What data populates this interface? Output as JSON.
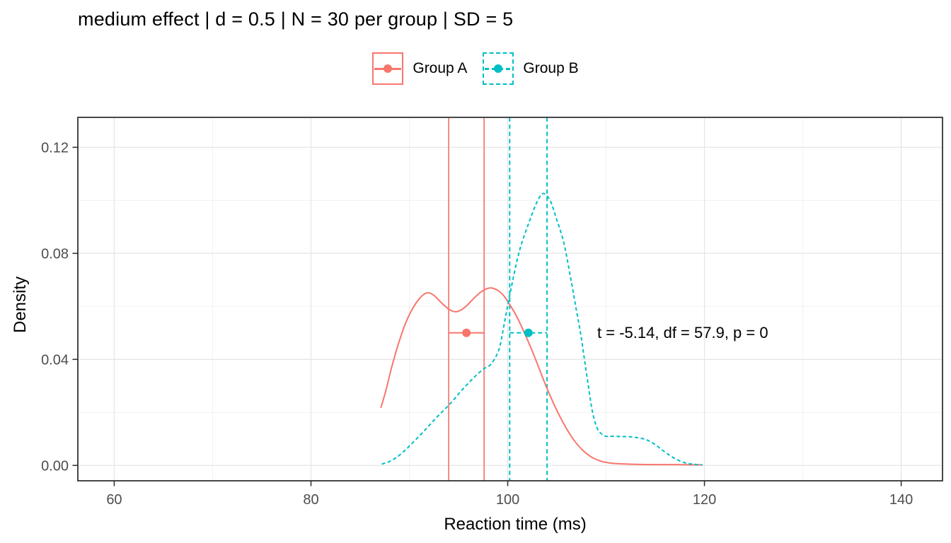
{
  "title": "medium effect | d = 0.5 | N = 30 per group | SD = 5",
  "legend": {
    "items": [
      {
        "label": "Group A",
        "color": "#F8766D",
        "linestyle": "solid"
      },
      {
        "label": "Group B",
        "color": "#00BFC4",
        "linestyle": "dashed"
      }
    ]
  },
  "axes": {
    "xlabel": "Reaction time (ms)",
    "ylabel": "Density"
  },
  "colors": {
    "group_a": "#F8766D",
    "group_b": "#00BFC4",
    "grid_major": "#E6E6E6",
    "grid_minor": "#F1F1F1",
    "panel_border": "#333333",
    "tick_label": "#4D4D4D",
    "text": "#000000",
    "background": "#FFFFFF"
  },
  "chart_data": {
    "type": "line",
    "title": "medium effect | d = 0.5 | N = 30 per group | SD = 5",
    "xlabel": "Reaction time (ms)",
    "ylabel": "Density",
    "xlim": [
      56.3,
      144.2
    ],
    "ylim": [
      -0.0058,
      0.1313
    ],
    "xticks_major": [
      60,
      80,
      100,
      120,
      140
    ],
    "xticks_minor": [
      70,
      90,
      110,
      130
    ],
    "yticks_major": [
      0,
      0.04,
      0.08,
      0.12
    ],
    "yticks_minor": [
      0.02,
      0.06,
      0.1
    ],
    "grid": true,
    "legend_position": "top-center",
    "annotation": {
      "text": "t = -5.14, df = 57.9, p = 0",
      "x": 109.1,
      "y": 0.05
    },
    "series": [
      {
        "name": "Group A",
        "color": "#F8766D",
        "linestyle": "solid",
        "mean": 95.8,
        "ci": [
          94.0,
          97.6
        ],
        "errorbar_y": 0.05,
        "ci_vlines": true,
        "x": [
          87.1,
          87.6,
          88.2,
          88.9,
          89.6,
          90.3,
          91.0,
          91.6,
          92.1,
          92.7,
          93.3,
          94.0,
          94.6,
          95.2,
          95.9,
          96.6,
          97.3,
          97.9,
          98.4,
          99.0,
          99.6,
          100.2,
          100.9,
          101.6,
          102.4,
          103.2,
          104.0,
          104.9,
          105.8,
          106.7,
          107.6,
          108.5,
          109.4,
          110.4,
          111.5,
          113.0,
          115.0,
          117.0,
          119.0,
          119.8
        ],
        "y": [
          0.0217,
          0.028,
          0.037,
          0.046,
          0.0535,
          0.059,
          0.0628,
          0.0648,
          0.065,
          0.0635,
          0.0612,
          0.059,
          0.058,
          0.0585,
          0.0605,
          0.0632,
          0.0655,
          0.0667,
          0.0669,
          0.066,
          0.064,
          0.0607,
          0.0563,
          0.0508,
          0.044,
          0.0365,
          0.029,
          0.0215,
          0.015,
          0.0097,
          0.0058,
          0.0032,
          0.0017,
          0.0009,
          0.0006,
          0.0004,
          0.0003,
          0.0003,
          0.0002,
          0.0002
        ]
      },
      {
        "name": "Group B",
        "color": "#00BFC4",
        "linestyle": "dashed",
        "mean": 102.1,
        "ci": [
          100.2,
          104.0
        ],
        "errorbar_y": 0.05,
        "ci_vlines": true,
        "x": [
          87.2,
          88.0,
          88.8,
          89.6,
          90.4,
          91.2,
          92.0,
          92.8,
          93.6,
          94.4,
          95.2,
          96.0,
          96.8,
          97.6,
          98.3,
          99.1,
          99.6,
          100.3,
          101.2,
          102.3,
          103.0,
          103.6,
          104.3,
          104.9,
          105.7,
          106.4,
          107.0,
          107.4,
          107.8,
          108.2,
          108.6,
          109.1,
          109.8,
          110.5,
          111.5,
          112.5,
          113.3,
          114.1,
          115.0,
          116.0,
          117.0,
          118.0,
          119.0,
          119.8
        ],
        "y": [
          0.0005,
          0.0015,
          0.0033,
          0.0058,
          0.0088,
          0.0118,
          0.015,
          0.0182,
          0.0212,
          0.0243,
          0.0278,
          0.031,
          0.034,
          0.0365,
          0.0382,
          0.0436,
          0.0525,
          0.066,
          0.081,
          0.093,
          0.0995,
          0.1026,
          0.1,
          0.0937,
          0.084,
          0.0707,
          0.0582,
          0.05,
          0.04,
          0.03,
          0.0205,
          0.014,
          0.0112,
          0.011,
          0.0109,
          0.0108,
          0.0104,
          0.0097,
          0.0078,
          0.005,
          0.0026,
          0.001,
          0.0004,
          0.0002
        ]
      }
    ]
  }
}
